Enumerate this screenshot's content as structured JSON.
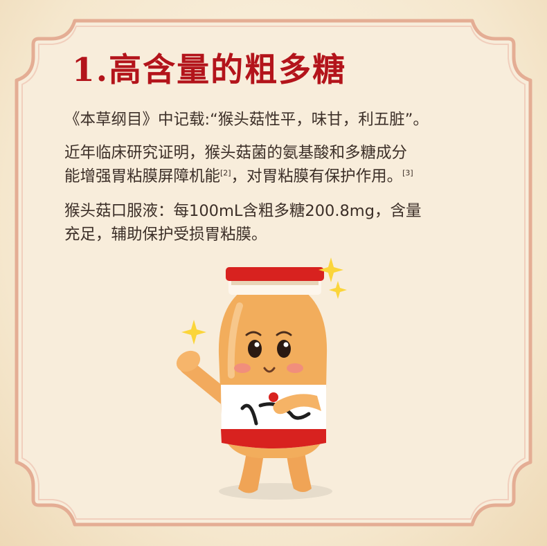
{
  "heading": "1.高含量的粗多糖",
  "para1": "《本草纲目》中记载:“猴头菇性平，味甘，利五脏”。",
  "para2": {
    "line1": "近年临床研究证明，猴头菇菌的氨基酸和多糖成分",
    "line2_a": "能增强胃粘膜屏障机能",
    "cite_a": "[2]",
    "line2_b": "，对胃粘膜有保护作用。",
    "cite_b": "[3]"
  },
  "para3": {
    "line1": "猴头菇口服液：每100mL含粗多糖200.8mg，含量",
    "line2": "充足，辅助保护受损胃粘膜。"
  },
  "mascot": {
    "brand_logo": "wordmark-logo",
    "label_script": "猴头菇"
  },
  "colors": {
    "heading": "#b3141b",
    "text": "#3c2f28",
    "cap": "#d8221f",
    "body": "#f2ad5c",
    "frame": "#e0a283"
  }
}
